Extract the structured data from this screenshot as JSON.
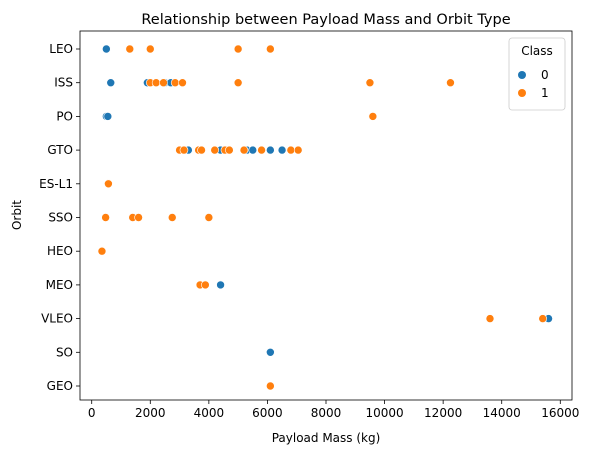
{
  "chart_data": {
    "type": "scatter",
    "title": "Relationship between Payload Mass and Orbit Type",
    "xlabel": "Payload Mass (kg)",
    "ylabel": "Orbit",
    "xlim": [
      -400,
      16400
    ],
    "xticks": [
      0,
      2000,
      4000,
      6000,
      8000,
      10000,
      12000,
      14000,
      16000
    ],
    "categories": [
      "LEO",
      "ISS",
      "PO",
      "GTO",
      "ES-L1",
      "SSO",
      "HEO",
      "MEO",
      "VLEO",
      "SO",
      "GEO"
    ],
    "grid": false,
    "legend": {
      "title": "Class",
      "placement": "top-right",
      "entries": [
        {
          "label": "0",
          "color": "#1f77b4"
        },
        {
          "label": "1",
          "color": "#ff7f0e"
        }
      ]
    },
    "series": [
      {
        "name": "0",
        "color": "#1f77b4",
        "points": [
          {
            "x": 500,
            "y": "LEO"
          },
          {
            "x": 650,
            "y": "ISS"
          },
          {
            "x": 1900,
            "y": "ISS"
          },
          {
            "x": 2500,
            "y": "ISS"
          },
          {
            "x": 2700,
            "y": "ISS"
          },
          {
            "x": 500,
            "y": "PO"
          },
          {
            "x": 550,
            "y": "PO"
          },
          {
            "x": 3300,
            "y": "GTO"
          },
          {
            "x": 4400,
            "y": "GTO"
          },
          {
            "x": 5300,
            "y": "GTO"
          },
          {
            "x": 5500,
            "y": "GTO"
          },
          {
            "x": 6100,
            "y": "GTO"
          },
          {
            "x": 6500,
            "y": "GTO"
          },
          {
            "x": 4400,
            "y": "MEO"
          },
          {
            "x": 15600,
            "y": "VLEO"
          },
          {
            "x": 6100,
            "y": "SO"
          }
        ]
      },
      {
        "name": "1",
        "color": "#ff7f0e",
        "points": [
          {
            "x": 1300,
            "y": "LEO"
          },
          {
            "x": 2000,
            "y": "LEO"
          },
          {
            "x": 5000,
            "y": "LEO"
          },
          {
            "x": 6100,
            "y": "LEO"
          },
          {
            "x": 2000,
            "y": "ISS"
          },
          {
            "x": 2200,
            "y": "ISS"
          },
          {
            "x": 2450,
            "y": "ISS"
          },
          {
            "x": 2850,
            "y": "ISS"
          },
          {
            "x": 3100,
            "y": "ISS"
          },
          {
            "x": 5000,
            "y": "ISS"
          },
          {
            "x": 9500,
            "y": "ISS"
          },
          {
            "x": 12250,
            "y": "ISS"
          },
          {
            "x": 9600,
            "y": "PO"
          },
          {
            "x": 3000,
            "y": "GTO"
          },
          {
            "x": 3150,
            "y": "GTO"
          },
          {
            "x": 3650,
            "y": "GTO"
          },
          {
            "x": 3750,
            "y": "GTO"
          },
          {
            "x": 4200,
            "y": "GTO"
          },
          {
            "x": 4550,
            "y": "GTO"
          },
          {
            "x": 4700,
            "y": "GTO"
          },
          {
            "x": 5200,
            "y": "GTO"
          },
          {
            "x": 5800,
            "y": "GTO"
          },
          {
            "x": 6800,
            "y": "GTO"
          },
          {
            "x": 7050,
            "y": "GTO"
          },
          {
            "x": 570,
            "y": "ES-L1"
          },
          {
            "x": 475,
            "y": "SSO"
          },
          {
            "x": 1400,
            "y": "SSO"
          },
          {
            "x": 1600,
            "y": "SSO"
          },
          {
            "x": 2750,
            "y": "SSO"
          },
          {
            "x": 4000,
            "y": "SSO"
          },
          {
            "x": 350,
            "y": "HEO"
          },
          {
            "x": 3700,
            "y": "MEO"
          },
          {
            "x": 3880,
            "y": "MEO"
          },
          {
            "x": 13600,
            "y": "VLEO"
          },
          {
            "x": 15400,
            "y": "VLEO"
          },
          {
            "x": 6100,
            "y": "GEO"
          }
        ]
      }
    ]
  }
}
